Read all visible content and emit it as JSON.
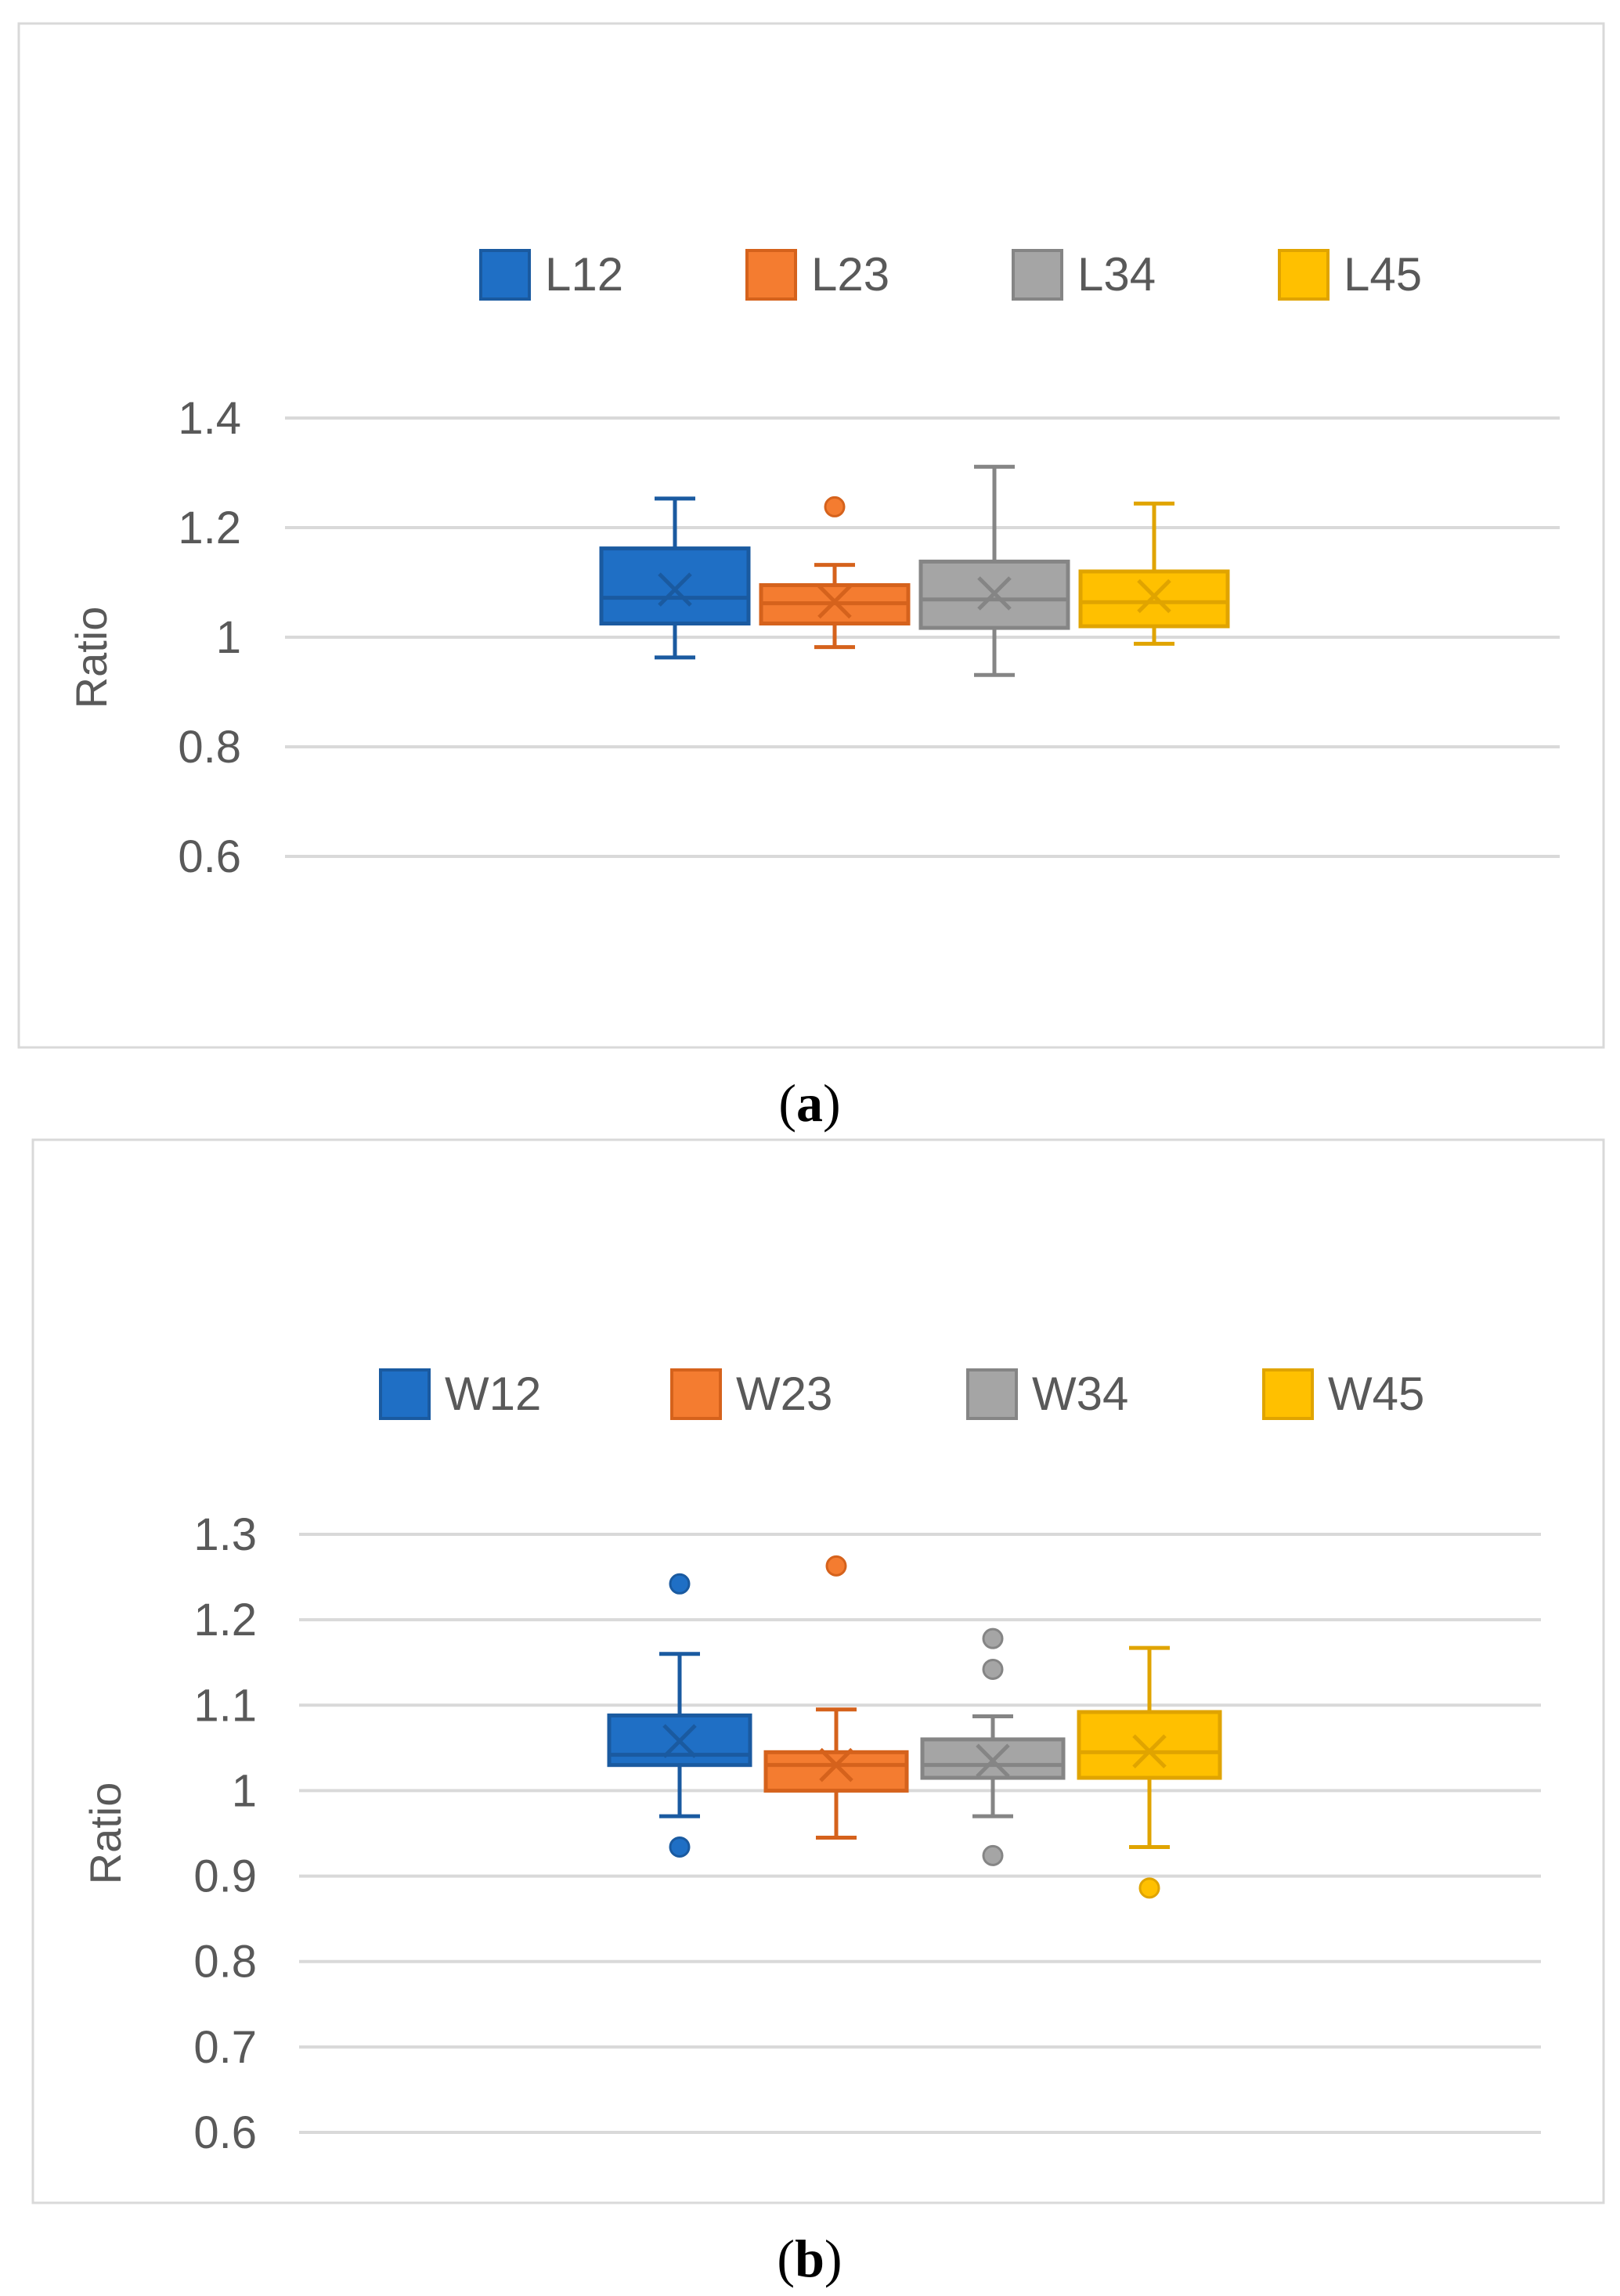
{
  "chart_data": [
    {
      "type": "box",
      "panel": "a",
      "caption_letter": "a",
      "ylabel": "Ratio",
      "ylim": [
        0.6,
        1.4
      ],
      "yticks": [
        0.6,
        0.8,
        1,
        1.2,
        1.4
      ],
      "ytick_labels": [
        "0.6",
        "0.8",
        "1",
        "1.2",
        "1.4"
      ],
      "legend_position": "top",
      "series": [
        {
          "name": "L12",
          "color": "#1f6fc5",
          "stroke": "#1a5aa0",
          "min": 0.963,
          "q1": 1.025,
          "median": 1.072,
          "q3": 1.162,
          "max": 1.253,
          "mean": 1.087,
          "outliers": []
        },
        {
          "name": "L23",
          "color": "#f47c30",
          "stroke": "#d5621c",
          "min": 0.982,
          "q1": 1.025,
          "median": 1.062,
          "q3": 1.095,
          "max": 1.132,
          "mean": 1.065,
          "outliers": [
            1.238
          ]
        },
        {
          "name": "L34",
          "color": "#a5a5a5",
          "stroke": "#858585",
          "min": 0.931,
          "q1": 1.017,
          "median": 1.069,
          "q3": 1.138,
          "max": 1.311,
          "mean": 1.08,
          "outliers": []
        },
        {
          "name": "L45",
          "color": "#ffc000",
          "stroke": "#e0a400",
          "min": 0.988,
          "q1": 1.02,
          "median": 1.064,
          "q3": 1.12,
          "max": 1.244,
          "mean": 1.075,
          "outliers": []
        }
      ]
    },
    {
      "type": "box",
      "panel": "b",
      "caption_letter": "b",
      "ylabel": "Ratio",
      "ylim": [
        0.6,
        1.3
      ],
      "yticks": [
        0.6,
        0.7,
        0.8,
        0.9,
        1,
        1.1,
        1.2,
        1.3
      ],
      "ytick_labels": [
        "0.6",
        "0.7",
        "0.8",
        "0.9",
        "1",
        "1.1",
        "1.2",
        "1.3"
      ],
      "legend_position": "top",
      "series": [
        {
          "name": "W12",
          "color": "#1f6fc5",
          "stroke": "#1a5aa0",
          "min": 0.97,
          "q1": 1.03,
          "median": 1.042,
          "q3": 1.088,
          "max": 1.16,
          "mean": 1.058,
          "outliers": [
            1.242,
            0.934
          ]
        },
        {
          "name": "W23",
          "color": "#f47c30",
          "stroke": "#d5621c",
          "min": 0.945,
          "q1": 1.0,
          "median": 1.03,
          "q3": 1.045,
          "max": 1.095,
          "mean": 1.03,
          "outliers": [
            1.263
          ]
        },
        {
          "name": "W34",
          "color": "#a5a5a5",
          "stroke": "#858585",
          "min": 0.97,
          "q1": 1.015,
          "median": 1.03,
          "q3": 1.06,
          "max": 1.087,
          "mean": 1.035,
          "outliers": [
            1.178,
            1.142,
            0.924
          ]
        },
        {
          "name": "W45",
          "color": "#ffc000",
          "stroke": "#e0a400",
          "min": 0.934,
          "q1": 1.015,
          "median": 1.045,
          "q3": 1.092,
          "max": 1.167,
          "mean": 1.046,
          "outliers": [
            0.886
          ]
        }
      ]
    }
  ]
}
